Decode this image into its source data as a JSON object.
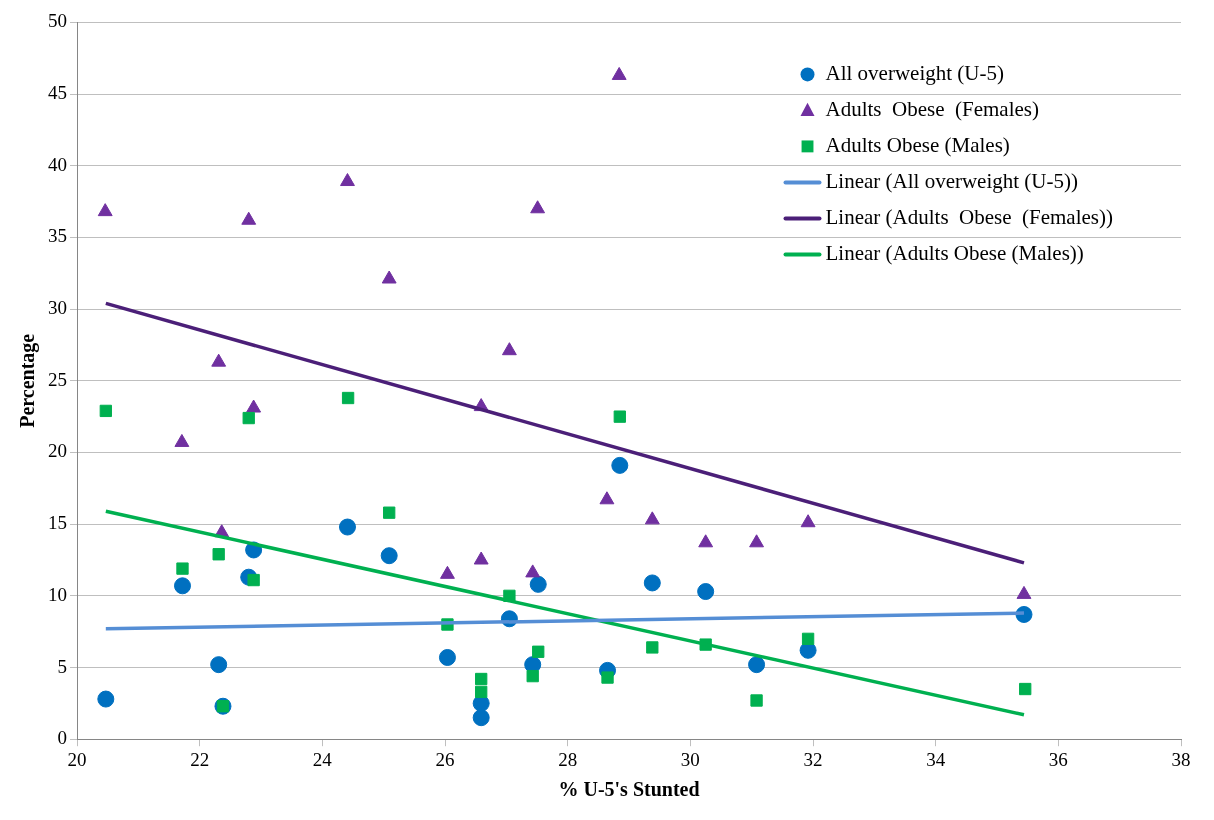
{
  "chart_data": {
    "type": "scatter",
    "xlabel": "% U-5's Stunted",
    "ylabel": "Percentage",
    "xlim": [
      20,
      38
    ],
    "ylim": [
      0,
      50
    ],
    "xticks": [
      20,
      22,
      24,
      26,
      28,
      30,
      32,
      34,
      36,
      38
    ],
    "yticks": [
      0,
      5,
      10,
      15,
      20,
      25,
      30,
      35,
      40,
      45,
      50
    ],
    "grid": "y",
    "legend": "top right",
    "series": [
      {
        "name": "All overweight (U-5)",
        "type": "scatter",
        "marker": "circle",
        "color": "#0070c0",
        "x": [
          20.47,
          21.72,
          22.31,
          22.38,
          22.8,
          22.88,
          24.41,
          25.09,
          26.04,
          26.59,
          26.59,
          27.05,
          27.52,
          27.43,
          28.85,
          28.65,
          29.38,
          30.25,
          31.08,
          31.92,
          35.44
        ],
        "values": [
          2.8,
          10.7,
          5.2,
          2.3,
          11.3,
          13.2,
          14.8,
          12.8,
          5.7,
          2.5,
          1.5,
          8.4,
          10.8,
          5.2,
          19.1,
          4.8,
          10.9,
          10.3,
          5.2,
          6.2,
          8.7
        ]
      },
      {
        "name": "Adults  Obese  (Females)",
        "type": "scatter",
        "marker": "triangle",
        "color": "#7030a0",
        "x": [
          20.46,
          21.71,
          22.31,
          22.36,
          22.8,
          22.88,
          24.41,
          25.09,
          26.04,
          26.59,
          26.59,
          27.05,
          27.43,
          27.51,
          28.64,
          28.84,
          29.38,
          30.25,
          31.08,
          31.92,
          35.44
        ],
        "values": [
          36.8,
          20.7,
          26.3,
          14.4,
          36.2,
          23.1,
          38.9,
          32.1,
          11.5,
          23.2,
          12.5,
          27.1,
          11.6,
          37.0,
          16.7,
          46.3,
          15.3,
          13.7,
          13.7,
          15.1,
          10.1
        ]
      },
      {
        "name": "Adults Obese (Males)",
        "type": "scatter",
        "marker": "square",
        "color": "#00b050",
        "x": [
          20.47,
          21.72,
          22.31,
          22.38,
          22.8,
          22.88,
          24.42,
          25.09,
          26.04,
          26.59,
          26.59,
          27.05,
          27.43,
          27.52,
          28.65,
          28.85,
          29.38,
          30.25,
          31.08,
          31.92,
          35.46
        ],
        "values": [
          22.9,
          11.9,
          12.9,
          2.3,
          22.4,
          11.1,
          23.8,
          15.8,
          8.0,
          4.2,
          3.3,
          10.0,
          4.4,
          6.1,
          4.3,
          22.5,
          6.4,
          6.6,
          2.7,
          7.0,
          3.5
        ]
      },
      {
        "name": "Linear (All overweight (U-5))",
        "type": "line",
        "marker": "none",
        "color": "#558ed5",
        "x": [
          20.47,
          35.44
        ],
        "values": [
          7.7,
          8.8
        ]
      },
      {
        "name": "Linear (Adults  Obese  (Females))",
        "type": "line",
        "marker": "none",
        "color": "#4b1f78",
        "x": [
          20.47,
          35.44
        ],
        "values": [
          30.4,
          12.3
        ]
      },
      {
        "name": "Linear (Adults Obese (Males))",
        "type": "line",
        "marker": "none",
        "color": "#00b050",
        "x": [
          20.47,
          35.44
        ],
        "values": [
          15.9,
          1.7
        ]
      }
    ]
  }
}
